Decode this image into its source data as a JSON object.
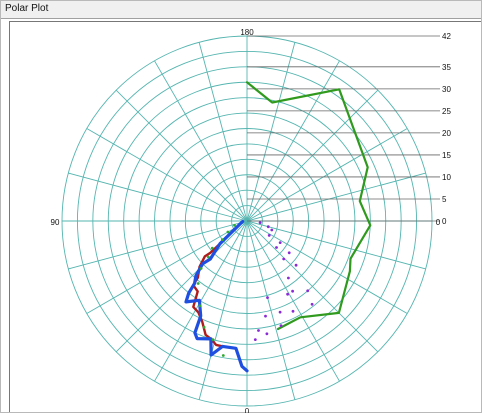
{
  "window": {
    "title": "Polar Plot"
  },
  "chart_data": {
    "type": "polar",
    "angle_labels": [
      "180",
      "90",
      "0",
      "0"
    ],
    "radial_scale_labels": [
      "42",
      "35",
      "30",
      "25",
      "20",
      "15",
      "10",
      "5",
      "0"
    ],
    "r_max": 42,
    "grid": true,
    "angle_axis": {
      "zero_at": "bottom",
      "direction": "clockwise",
      "unit": "deg"
    },
    "series": [
      {
        "style": "line",
        "color": "#2f9a1e",
        "points": [
          [
            180,
            31.5
          ],
          [
            192,
            27.5
          ],
          [
            215,
            36.5
          ],
          [
            246,
            30
          ],
          [
            260,
            26
          ],
          [
            272,
            28
          ],
          [
            290,
            25
          ],
          [
            296,
            26
          ],
          [
            315,
            29.5
          ],
          [
            331,
            25
          ],
          [
            344,
            25.5
          ]
        ]
      },
      {
        "style": "line",
        "color": "#b01c1c",
        "points": [
          [
            84,
            1
          ],
          [
            50,
            8
          ],
          [
            49,
            11
          ],
          [
            50,
            12.5
          ],
          [
            46,
            15
          ],
          [
            41,
            17
          ],
          [
            40,
            19
          ],
          [
            35,
            19.5
          ],
          [
            32,
            23
          ],
          [
            28,
            23.5
          ],
          [
            24,
            25
          ],
          [
            20,
            27.5
          ],
          [
            17,
            28
          ],
          [
            14,
            29
          ],
          [
            10,
            29
          ]
        ]
      },
      {
        "style": "line",
        "color": "#1f4fe0",
        "points": [
          [
            84,
            1
          ],
          [
            50,
            8
          ],
          [
            44,
            12
          ],
          [
            46,
            14
          ],
          [
            43,
            17
          ],
          [
            40,
            18.5
          ],
          [
            39,
            21
          ],
          [
            37,
            23
          ],
          [
            31,
            21
          ],
          [
            26,
            24
          ],
          [
            25,
            28
          ],
          [
            23,
            29
          ],
          [
            17,
            28
          ],
          [
            15,
            31.5
          ],
          [
            11,
            29
          ],
          [
            5,
            29
          ],
          [
            2,
            33
          ],
          [
            0,
            34
          ]
        ]
      },
      {
        "style": "dots",
        "color": "#8a2bd6",
        "points": [
          [
            277,
            3
          ],
          [
            285,
            5
          ],
          [
            303,
            6
          ],
          [
            312,
            9
          ],
          [
            316,
            12
          ],
          [
            324,
            16
          ],
          [
            331,
            19
          ],
          [
            333,
            23
          ],
          [
            342,
            25
          ],
          [
            350,
            26
          ],
          [
            356,
            27
          ],
          [
            290,
            6
          ],
          [
            303,
            9
          ],
          [
            307,
            12
          ],
          [
            312,
            15
          ],
          [
            319,
            21
          ],
          [
            322,
            24
          ],
          [
            327,
            19
          ],
          [
            340,
            22
          ],
          [
            349,
            22
          ],
          [
            354,
            25
          ],
          [
            345,
            18
          ]
        ]
      },
      {
        "style": "dots",
        "color": "#2fa92f",
        "points": [
          [
            71,
            3
          ],
          [
            60,
            5
          ],
          [
            52,
            10
          ],
          [
            44,
            15
          ],
          [
            38,
            18
          ],
          [
            29,
            22
          ],
          [
            22,
            26
          ],
          [
            16,
            28
          ],
          [
            10,
            31
          ],
          [
            53,
            7
          ],
          [
            47,
            12
          ]
        ]
      }
    ]
  }
}
